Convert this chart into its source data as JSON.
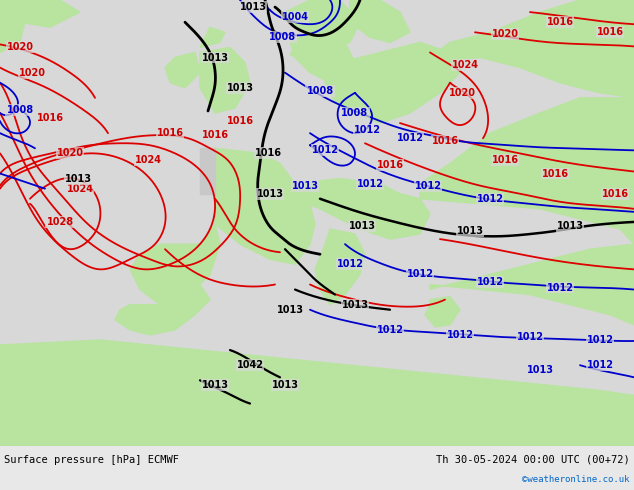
{
  "title_left": "Surface pressure [hPa] ECMWF",
  "title_right": "Th 30-05-2024 00:00 UTC (00+72)",
  "watermark": "©weatheronline.co.uk",
  "sea_color": "#d8d8d8",
  "land_color": "#b8e4a0",
  "fig_width": 6.34,
  "fig_height": 4.9,
  "dpi": 100,
  "bottom_bar_color": "#e8e8e8",
  "text_color_black": "#000000",
  "text_color_red": "#cc0000",
  "text_color_blue": "#0000cc",
  "text_color_cyan_watermark": "#0066cc",
  "isobar_red": "#dd0000",
  "isobar_blue": "#0000cc",
  "isobar_black": "#000000",
  "label_fontsize": 7,
  "title_fontsize": 7.5
}
